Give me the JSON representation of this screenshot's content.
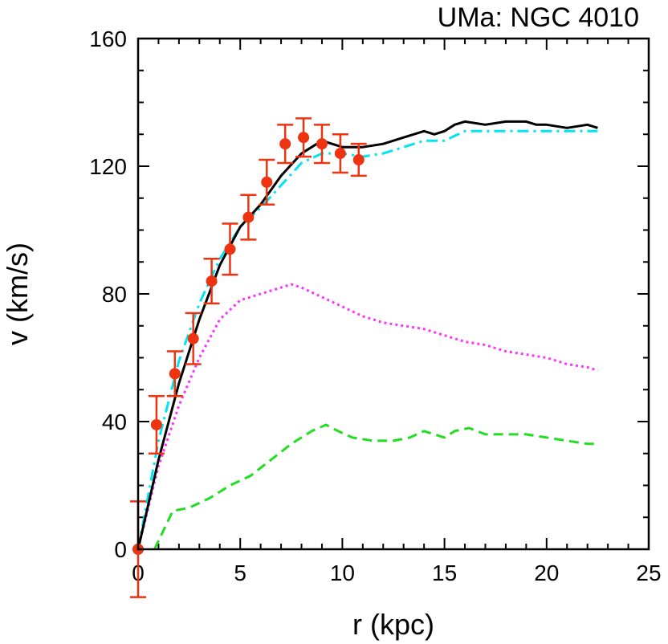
{
  "chart_data": {
    "type": "line",
    "title": "UMa: NGC 4010",
    "xlabel": "r (kpc)",
    "ylabel": "v (km/s)",
    "xlim": [
      0,
      25
    ],
    "ylim": [
      0,
      160
    ],
    "xticks": [
      0,
      5,
      10,
      15,
      20,
      25
    ],
    "xtick_labels": [
      "0",
      "5",
      "10",
      "15",
      "20",
      "25"
    ],
    "yticks": [
      0,
      40,
      80,
      120,
      160
    ],
    "ytick_labels": [
      "0",
      "40",
      "80",
      "120",
      "160"
    ],
    "grid": false,
    "observed": {
      "r": [
        0.0,
        0.9,
        1.8,
        2.7,
        3.6,
        4.5,
        5.4,
        6.3,
        7.2,
        8.1,
        9.0,
        9.9,
        10.8
      ],
      "v": [
        0,
        39,
        55,
        66,
        84,
        94,
        104,
        115,
        127,
        129,
        127,
        124,
        122
      ],
      "err": [
        15,
        9,
        7,
        8,
        7,
        8,
        7,
        7,
        6,
        6,
        6,
        6,
        5
      ],
      "color": "#ee3311"
    },
    "series": [
      {
        "color": "#000000",
        "style": "solid",
        "x": [
          0,
          1,
          2,
          3,
          4,
          5,
          6,
          7,
          8,
          9,
          10,
          11,
          12,
          13,
          14,
          14.5,
          15,
          15.5,
          16,
          17,
          18,
          19,
          19.5,
          20,
          21,
          22,
          22.5
        ],
        "y": [
          0,
          28,
          52,
          72,
          89,
          101,
          108,
          117,
          124,
          128,
          126,
          126,
          127,
          129,
          131,
          130,
          131,
          133,
          134,
          133,
          134,
          134,
          133,
          133,
          132,
          133,
          132
        ]
      },
      {
        "color": "#00e5f0",
        "style": "dashdot",
        "x": [
          0,
          1,
          2,
          3,
          4,
          5,
          6,
          7,
          8,
          9,
          10,
          11,
          12,
          13,
          14,
          15,
          16,
          17,
          18,
          19,
          20,
          21,
          22,
          22.5
        ],
        "y": [
          0,
          34,
          59,
          77,
          91,
          101,
          107,
          114,
          121,
          124,
          124,
          123,
          124,
          126,
          128,
          128,
          131,
          131,
          131,
          131,
          131,
          131,
          131,
          131
        ]
      },
      {
        "color": "#ff33ff",
        "style": "dotted",
        "x": [
          0,
          1,
          2,
          3,
          4,
          5,
          6,
          7,
          7.5,
          8,
          9,
          10,
          11,
          12,
          13,
          14,
          15,
          16,
          17,
          18,
          19,
          20,
          21,
          22,
          22.5
        ],
        "y": [
          0,
          26,
          45,
          60,
          72,
          78,
          80,
          82,
          83,
          82,
          79,
          76,
          73,
          71,
          70,
          69,
          67,
          65,
          64,
          62,
          61,
          60,
          58,
          57,
          56
        ]
      },
      {
        "color": "#22dd22",
        "style": "dashed",
        "x": [
          0.8,
          1.7,
          2.5,
          3.5,
          4.5,
          5.5,
          6.5,
          7.5,
          8.5,
          9.2,
          9.8,
          10.5,
          11.5,
          12.5,
          13.3,
          14.0,
          14.5,
          15.0,
          15.5,
          16.2,
          17.0,
          18.0,
          19.0,
          20.0,
          21.0,
          22.0,
          22.5
        ],
        "y": [
          0,
          12,
          13,
          16,
          20,
          23,
          28,
          33,
          37,
          39,
          37,
          35,
          34,
          34,
          35,
          37,
          36,
          35,
          37,
          38,
          36,
          36,
          36,
          35,
          34,
          33,
          33
        ]
      }
    ]
  }
}
